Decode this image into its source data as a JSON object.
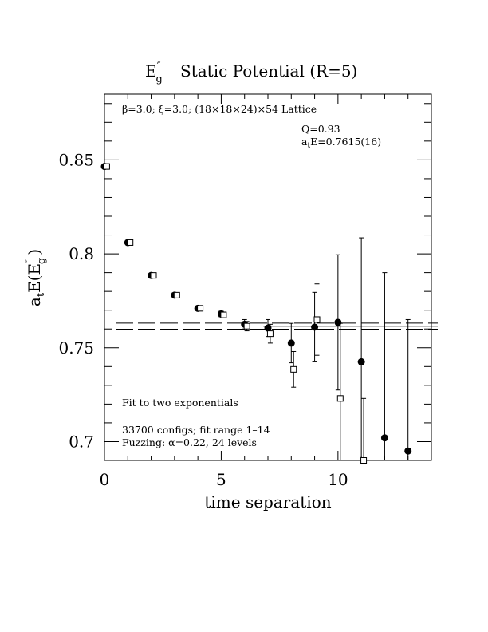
{
  "chart_data": {
    "type": "scatter",
    "title": {
      "main_base": "E",
      "main_sup": "″",
      "main_sub": "g",
      "main_rest": "Static Potential (R=5)"
    },
    "xlabel": "time separation",
    "ylabel": {
      "prefix": "a",
      "prefix_sub": "t",
      "mid": "E(E",
      "mid_sup": "″",
      "mid_sub": "g",
      "end": ")"
    },
    "xlim": [
      0,
      14
    ],
    "ylim": [
      0.69,
      0.885
    ],
    "xticks": [
      {
        "value": 0,
        "label": "0"
      },
      {
        "value": 5,
        "label": "5"
      },
      {
        "value": 10,
        "label": "10"
      }
    ],
    "yticks": [
      {
        "value": 0.7,
        "label": "0.7"
      },
      {
        "value": 0.75,
        "label": "0.75"
      },
      {
        "value": 0.8,
        "label": "0.8"
      },
      {
        "value": 0.85,
        "label": "0.85"
      }
    ],
    "annotations": {
      "lattice_beta": "β=3.0; ",
      "lattice_xi": "ξ=3.0; (18×18×24)×54 Lattice",
      "q": "Q=0.93",
      "ate_prefix": "a",
      "ate_sub": "t",
      "ate_rest": "E=0.7615(16)",
      "fit": "Fit to two exponentials",
      "configs": "33700 configs; fit range 1–14",
      "fuzzing": "Fuzzing: α=0.22, 24 levels"
    },
    "fit": {
      "value": 0.7615,
      "error": 0.0016,
      "xrange": [
        1,
        14
      ]
    },
    "series": [
      {
        "marker": "filled-circle",
        "points": [
          {
            "x": 0,
            "y": 0.8465,
            "err": 0.0005
          },
          {
            "x": 1,
            "y": 0.806,
            "err": 0.0008
          },
          {
            "x": 2,
            "y": 0.7885,
            "err": 0.001
          },
          {
            "x": 3,
            "y": 0.778,
            "err": 0.001
          },
          {
            "x": 4,
            "y": 0.771,
            "err": 0.0012
          },
          {
            "x": 5,
            "y": 0.768,
            "err": 0.0015
          },
          {
            "x": 6,
            "y": 0.7625,
            "err": 0.0025
          },
          {
            "x": 7,
            "y": 0.7605,
            "err": 0.0045
          },
          {
            "x": 8,
            "y": 0.7525,
            "err": 0.0105
          },
          {
            "x": 9,
            "y": 0.761,
            "err": 0.0185
          },
          {
            "x": 10,
            "y": 0.7635,
            "err": 0.036
          },
          {
            "x": 11,
            "y": 0.7425,
            "err": 0.066
          },
          {
            "x": 12,
            "y": 0.702,
            "err": 0.088
          },
          {
            "x": 13,
            "y": 0.695,
            "err": 0.07
          }
        ]
      },
      {
        "marker": "open-square",
        "points": [
          {
            "x": 0.1,
            "y": 0.8465,
            "err": 0.0005
          },
          {
            "x": 1.1,
            "y": 0.806,
            "err": 0.0008
          },
          {
            "x": 2.1,
            "y": 0.7885,
            "err": 0.001
          },
          {
            "x": 3.1,
            "y": 0.778,
            "err": 0.001
          },
          {
            "x": 4.1,
            "y": 0.771,
            "err": 0.0012
          },
          {
            "x": 5.1,
            "y": 0.7675,
            "err": 0.0015
          },
          {
            "x": 6.1,
            "y": 0.7615,
            "err": 0.0025
          },
          {
            "x": 7.1,
            "y": 0.7575,
            "err": 0.005
          },
          {
            "x": 8.1,
            "y": 0.7385,
            "err": 0.0095
          },
          {
            "x": 9.1,
            "y": 0.765,
            "err": 0.019
          },
          {
            "x": 10.1,
            "y": 0.723,
            "err": 0.04
          },
          {
            "x": 11.1,
            "y": 0.69,
            "err": 0.033
          }
        ]
      }
    ]
  }
}
